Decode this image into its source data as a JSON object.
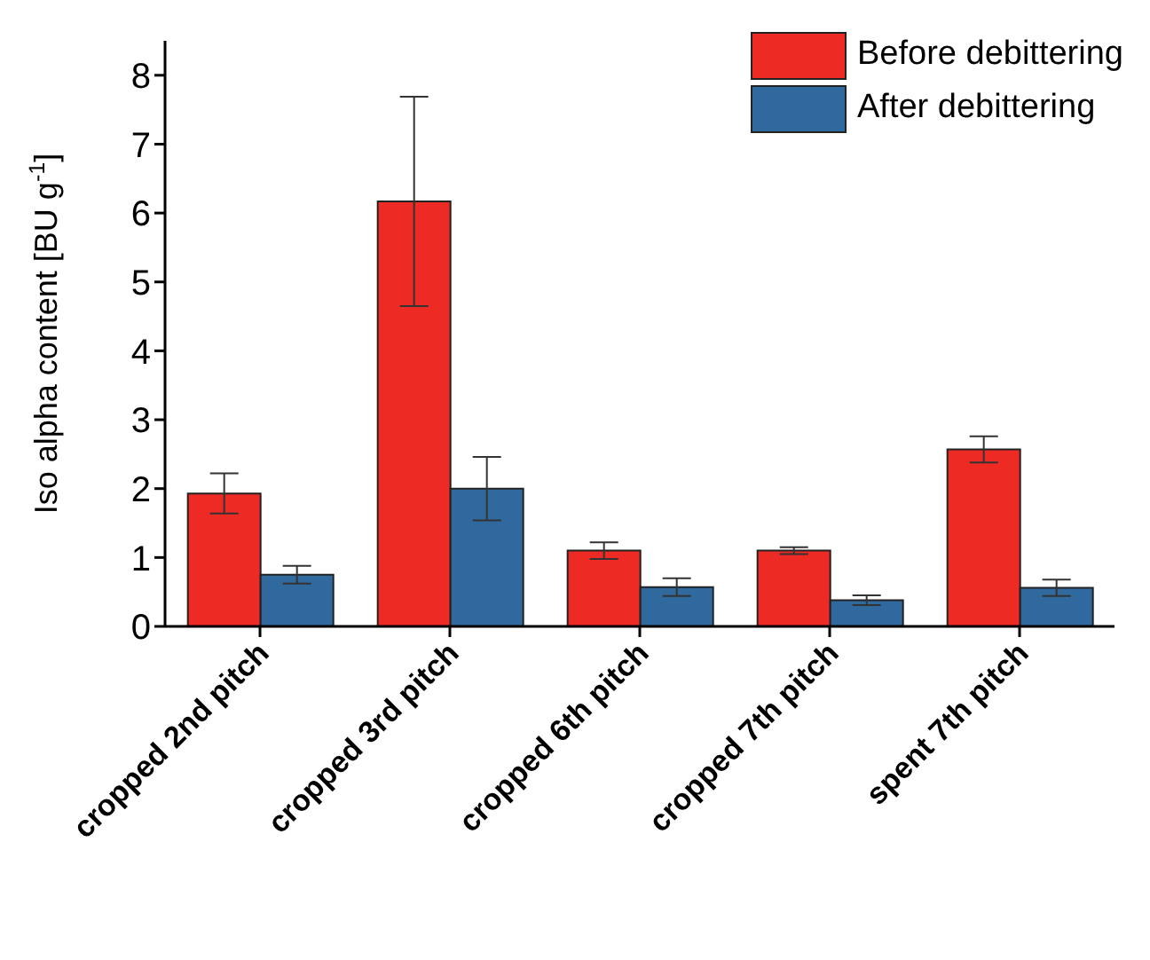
{
  "chart_data": {
    "type": "bar",
    "ylabel": "Iso alpha content [BU g$^{-1}$]",
    "categories": [
      "cropped 2nd pitch",
      "cropped 3rd pitch",
      "cropped 6th pitch",
      "cropped 7th pitch",
      "spent 7th pitch"
    ],
    "series": [
      {
        "name": "Before debittering",
        "color": "#ee2a24",
        "values": [
          1.93,
          6.17,
          1.1,
          1.1,
          2.57
        ],
        "errors": [
          0.29,
          1.52,
          0.12,
          0.05,
          0.19
        ]
      },
      {
        "name": "After debittering",
        "color": "#30699e",
        "values": [
          0.75,
          2.0,
          0.57,
          0.38,
          0.56
        ],
        "errors": [
          0.13,
          0.46,
          0.13,
          0.07,
          0.12
        ]
      }
    ],
    "ylim": [
      0,
      8.5
    ],
    "yticks": [
      0,
      1,
      2,
      3,
      4,
      5,
      6,
      7,
      8
    ],
    "grid": false,
    "legend": "top right"
  }
}
